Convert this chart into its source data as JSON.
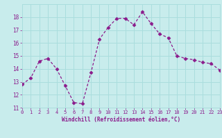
{
  "x": [
    0,
    1,
    2,
    3,
    4,
    5,
    6,
    7,
    8,
    9,
    10,
    11,
    12,
    13,
    14,
    15,
    16,
    17,
    18,
    19,
    20,
    21,
    22,
    23
  ],
  "y": [
    12.8,
    13.3,
    14.6,
    14.8,
    14.0,
    12.7,
    11.4,
    11.3,
    13.7,
    16.3,
    17.2,
    17.9,
    17.9,
    17.4,
    18.4,
    17.5,
    16.7,
    16.4,
    15.0,
    14.8,
    14.7,
    14.5,
    14.4,
    13.9
  ],
  "line_color": "#8b1a8b",
  "marker": "D",
  "marker_size": 2.5,
  "bg_color": "#c8ecec",
  "grid_color": "#aadddd",
  "xlabel": "Windchill (Refroidissement éolien,°C)",
  "xlabel_color": "#8b1a8b",
  "tick_color": "#8b1a8b",
  "ylim": [
    11,
    19
  ],
  "xlim": [
    0,
    23
  ],
  "yticks": [
    11,
    12,
    13,
    14,
    15,
    16,
    17,
    18
  ],
  "xticks": [
    0,
    1,
    2,
    3,
    4,
    5,
    6,
    7,
    8,
    9,
    10,
    11,
    12,
    13,
    14,
    15,
    16,
    17,
    18,
    19,
    20,
    21,
    22,
    23
  ]
}
